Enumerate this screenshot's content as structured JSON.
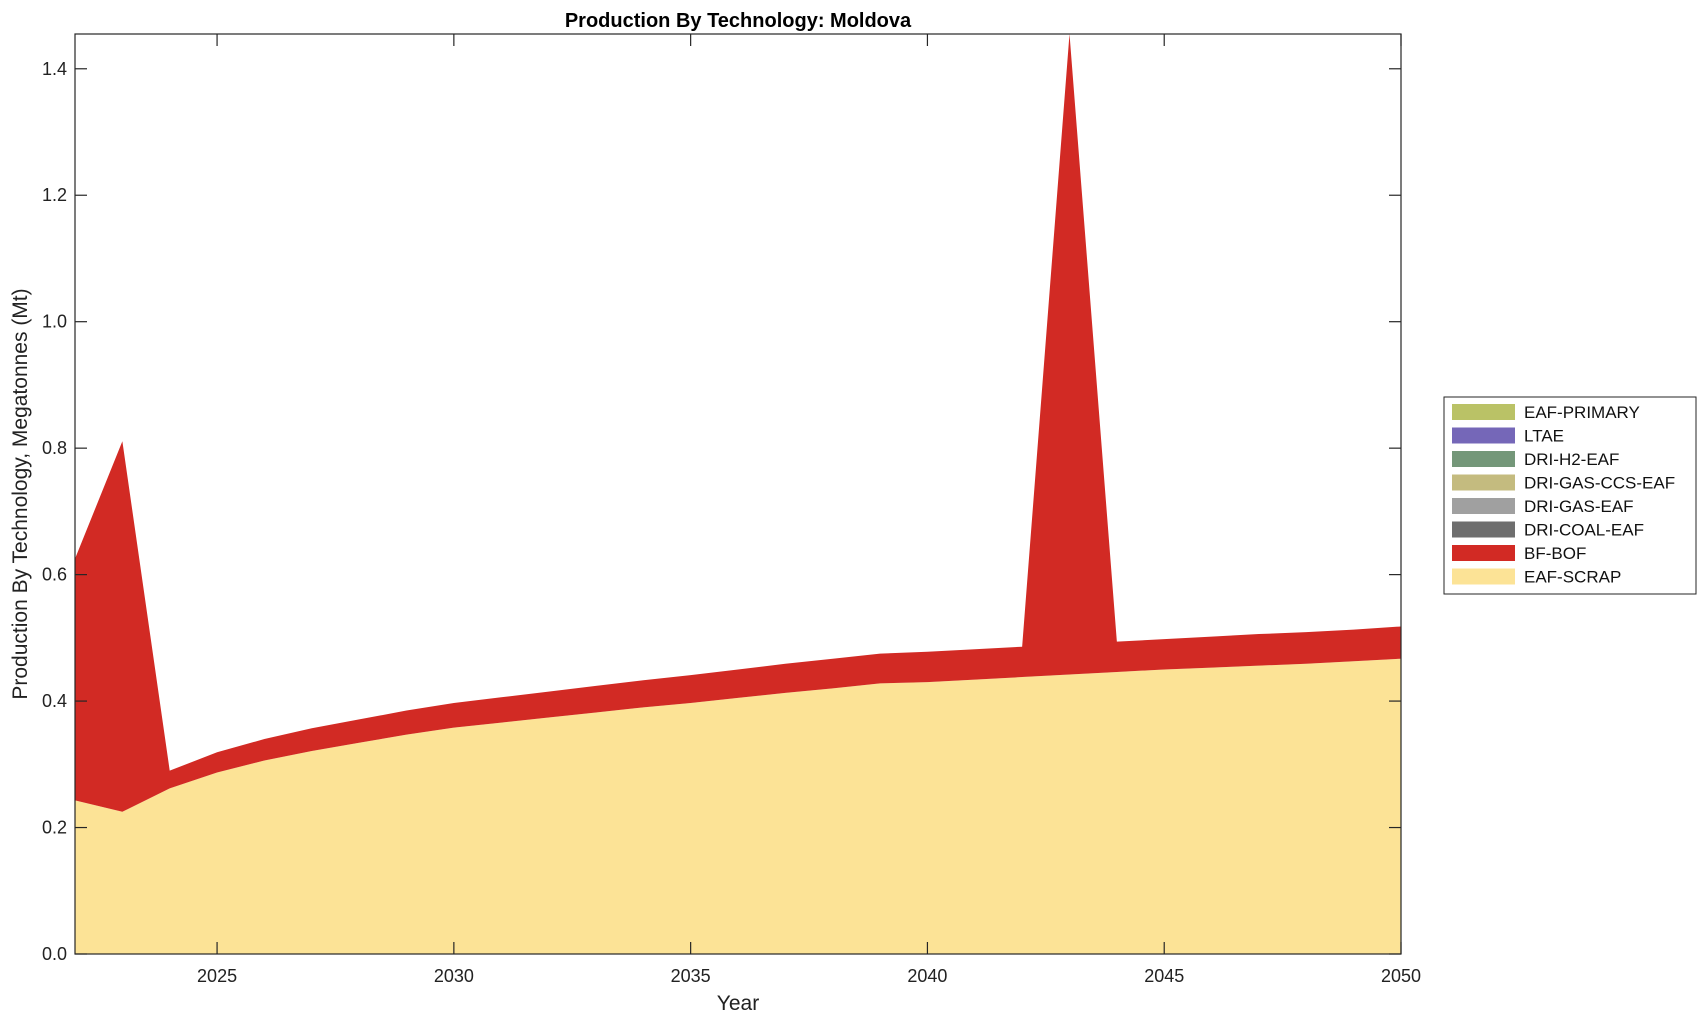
{
  "chart_data": {
    "type": "area",
    "stacked": true,
    "title": "Production By Technology: Moldova",
    "xlabel": "Year",
    "ylabel": "Production By Technology, Megatonnes (Mt)",
    "xlim": [
      2022,
      2050
    ],
    "ylim": [
      0,
      1.455
    ],
    "xticks": [
      2025,
      2030,
      2035,
      2040,
      2045,
      2050
    ],
    "yticks": [
      0.0,
      0.2,
      0.4,
      0.6,
      0.8,
      1.0,
      1.2,
      1.4
    ],
    "ytick_labels": [
      "0.0",
      "0.2",
      "0.4",
      "0.6",
      "0.8",
      "1.0",
      "1.2",
      "1.4"
    ],
    "grid": false,
    "legend_position": "right",
    "x": [
      2022,
      2023,
      2024,
      2025,
      2026,
      2027,
      2028,
      2029,
      2030,
      2031,
      2032,
      2033,
      2034,
      2035,
      2036,
      2037,
      2038,
      2039,
      2040,
      2041,
      2042,
      2043,
      2044,
      2045,
      2046,
      2047,
      2048,
      2049,
      2050
    ],
    "series": [
      {
        "name": "EAF-SCRAP",
        "color": "#FCE396",
        "values": [
          0.243,
          0.225,
          0.262,
          0.287,
          0.306,
          0.321,
          0.334,
          0.347,
          0.358,
          0.366,
          0.374,
          0.382,
          0.39,
          0.397,
          0.405,
          0.413,
          0.42,
          0.428,
          0.43,
          0.434,
          0.438,
          0.442,
          0.446,
          0.45,
          0.453,
          0.456,
          0.459,
          0.463,
          0.467
        ]
      },
      {
        "name": "BF-BOF",
        "color": "#D22A24",
        "values": [
          0.382,
          0.586,
          0.028,
          0.032,
          0.034,
          0.036,
          0.037,
          0.038,
          0.039,
          0.04,
          0.041,
          0.042,
          0.043,
          0.044,
          0.045,
          0.046,
          0.047,
          0.047,
          0.048,
          0.048,
          0.048,
          1.013,
          0.048,
          0.048,
          0.049,
          0.05,
          0.05,
          0.05,
          0.051
        ]
      },
      {
        "name": "DRI-COAL-EAF",
        "color": "#6E6E6E",
        "values": [
          0,
          0,
          0,
          0,
          0,
          0,
          0,
          0,
          0,
          0,
          0,
          0,
          0,
          0,
          0,
          0,
          0,
          0,
          0,
          0,
          0,
          0,
          0,
          0,
          0,
          0,
          0,
          0,
          0
        ]
      },
      {
        "name": "DRI-GAS-EAF",
        "color": "#A0A0A0",
        "values": [
          0,
          0,
          0,
          0,
          0,
          0,
          0,
          0,
          0,
          0,
          0,
          0,
          0,
          0,
          0,
          0,
          0,
          0,
          0,
          0,
          0,
          0,
          0,
          0,
          0,
          0,
          0,
          0,
          0
        ]
      },
      {
        "name": "DRI-GAS-CCS-EAF",
        "color": "#C4BB7F",
        "values": [
          0,
          0,
          0,
          0,
          0,
          0,
          0,
          0,
          0,
          0,
          0,
          0,
          0,
          0,
          0,
          0,
          0,
          0,
          0,
          0,
          0,
          0,
          0,
          0,
          0,
          0,
          0,
          0,
          0
        ]
      },
      {
        "name": "DRI-H2-EAF",
        "color": "#749779",
        "values": [
          0,
          0,
          0,
          0,
          0,
          0,
          0,
          0,
          0,
          0,
          0,
          0,
          0,
          0,
          0,
          0,
          0,
          0,
          0,
          0,
          0,
          0,
          0,
          0,
          0,
          0,
          0,
          0,
          0
        ]
      },
      {
        "name": "LTAE",
        "color": "#7567B8",
        "values": [
          0,
          0,
          0,
          0,
          0,
          0,
          0,
          0,
          0,
          0,
          0,
          0,
          0,
          0,
          0,
          0,
          0,
          0,
          0,
          0,
          0,
          0,
          0,
          0,
          0,
          0,
          0,
          0,
          0
        ]
      },
      {
        "name": "EAF-PRIMARY",
        "color": "#BAC266",
        "values": [
          0,
          0,
          0,
          0,
          0,
          0,
          0,
          0,
          0,
          0,
          0,
          0,
          0,
          0,
          0,
          0,
          0,
          0,
          0,
          0,
          0,
          0,
          0,
          0,
          0,
          0,
          0,
          0,
          0
        ]
      }
    ],
    "legend_order": [
      "EAF-PRIMARY",
      "LTAE",
      "DRI-H2-EAF",
      "DRI-GAS-CCS-EAF",
      "DRI-GAS-EAF",
      "DRI-COAL-EAF",
      "BF-BOF",
      "EAF-SCRAP"
    ]
  }
}
